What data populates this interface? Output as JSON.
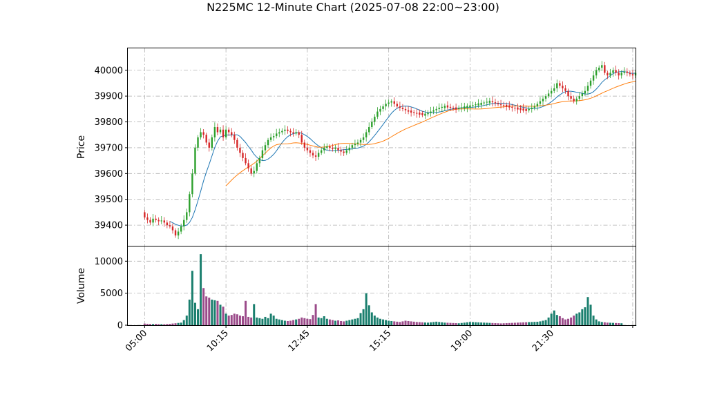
{
  "chart_data": {
    "type": "candlestick",
    "title": "N225MC 12-Minute Chart (2025-07-08 22:00~23:00)",
    "price_panel": {
      "ylabel": "Price",
      "ylim": [
        39320,
        40085
      ],
      "yticks": [
        39400,
        39500,
        39600,
        39700,
        39800,
        39900,
        40000
      ],
      "grid": true
    },
    "volume_panel": {
      "ylabel": "Volume",
      "ylim": [
        0,
        12300
      ],
      "yticks": [
        0,
        5000,
        10000
      ],
      "grid": true
    },
    "xlim": [
      -6,
      175
    ],
    "x_ticks": [
      {
        "index": 0,
        "label": "05:00"
      },
      {
        "index": 29,
        "label": "10:15"
      },
      {
        "index": 58,
        "label": "12:45"
      },
      {
        "index": 87,
        "label": "15:15"
      },
      {
        "index": 116,
        "label": "19:00"
      },
      {
        "index": 145,
        "label": "21:30"
      },
      {
        "index": 174,
        "label": ""
      }
    ],
    "colors": {
      "up": "#2ca02c",
      "down": "#d62728",
      "ma_short": "#1f77b4",
      "ma_long": "#ff7f0e",
      "vol_up": "#1a7f6e",
      "vol_down": "#9b4b8a",
      "grid": "#b0b0b0"
    },
    "ma_short_period": 10,
    "ma_long_period": 30,
    "closes": [
      39430,
      39420,
      39410,
      39425,
      39420,
      39415,
      39418,
      39410,
      39400,
      39395,
      39380,
      39360,
      39375,
      39395,
      39420,
      39450,
      39520,
      39600,
      39700,
      39740,
      39760,
      39750,
      39720,
      39700,
      39740,
      39780,
      39760,
      39770,
      39740,
      39770,
      39760,
      39750,
      39730,
      39700,
      39680,
      39660,
      39640,
      39620,
      39600,
      39610,
      39640,
      39660,
      39690,
      39710,
      39730,
      39740,
      39745,
      39755,
      39760,
      39765,
      39770,
      39765,
      39760,
      39755,
      39760,
      39750,
      39720,
      39700,
      39690,
      39680,
      39670,
      39665,
      39680,
      39690,
      39700,
      39705,
      39700,
      39695,
      39700,
      39690,
      39685,
      39680,
      39690,
      39700,
      39710,
      39715,
      39720,
      39730,
      39740,
      39760,
      39780,
      39800,
      39820,
      39840,
      39850,
      39860,
      39870,
      39875,
      39880,
      39870,
      39860,
      39855,
      39850,
      39845,
      39840,
      39838,
      39835,
      39832,
      39830,
      39828,
      39830,
      39835,
      39840,
      39845,
      39850,
      39855,
      39858,
      39860,
      39858,
      39855,
      39852,
      39850,
      39853,
      39856,
      39858,
      39860,
      39862,
      39865,
      39868,
      39870,
      39872,
      39875,
      39878,
      39880,
      39876,
      39872,
      39868,
      39865,
      39862,
      39860,
      39858,
      39855,
      39852,
      39850,
      39848,
      39846,
      39845,
      39850,
      39855,
      39860,
      39870,
      39880,
      39890,
      39900,
      39910,
      39920,
      39930,
      39950,
      39940,
      39930,
      39920,
      39900,
      39890,
      39880,
      39890,
      39900,
      39910,
      39920,
      39940,
      39960,
      39980,
      40000,
      40010,
      40020,
      39990,
      39980,
      39990,
      40000,
      39990,
      39980,
      39990,
      39995,
      39990,
      39985,
      39980,
      39990
    ],
    "volumes": [
      250,
      220,
      190,
      180,
      200,
      170,
      160,
      150,
      180,
      210,
      260,
      300,
      350,
      400,
      800,
      1500,
      4000,
      8500,
      3500,
      2500,
      11100,
      5800,
      4500,
      4300,
      4000,
      3900,
      3800,
      3200,
      2900,
      1800,
      1500,
      1600,
      1800,
      1700,
      1500,
      1400,
      3800,
      1300,
      1200,
      3300,
      1200,
      1100,
      1000,
      1300,
      1100,
      1800,
      1500,
      1000,
      900,
      800,
      700,
      650,
      700,
      800,
      900,
      1000,
      1200,
      1100,
      1000,
      950,
      1600,
      3300,
      1200,
      1100,
      1400,
      1000,
      900,
      800,
      700,
      750,
      650,
      600,
      700,
      800,
      900,
      1000,
      1100,
      1900,
      2500,
      5000,
      3100,
      2000,
      1500,
      1200,
      1000,
      900,
      800,
      700,
      650,
      600,
      550,
      500,
      600,
      700,
      650,
      600,
      550,
      500,
      480,
      450,
      420,
      400,
      450,
      500,
      550,
      500,
      450,
      400,
      380,
      360,
      340,
      320,
      300,
      350,
      400,
      450,
      500,
      480,
      460,
      440,
      420,
      400,
      380,
      360,
      340,
      320,
      300,
      280,
      300,
      320,
      340,
      360,
      380,
      400,
      420,
      440,
      460,
      480,
      500,
      520,
      540,
      600,
      700,
      800,
      1200,
      1800,
      2300,
      1600,
      1400,
      1100,
      900,
      1000,
      1200,
      1500,
      1800,
      2000,
      2500,
      2800,
      4400,
      3200,
      1500,
      900,
      600,
      500,
      450,
      400,
      380,
      360,
      340,
      320,
      300
    ]
  }
}
